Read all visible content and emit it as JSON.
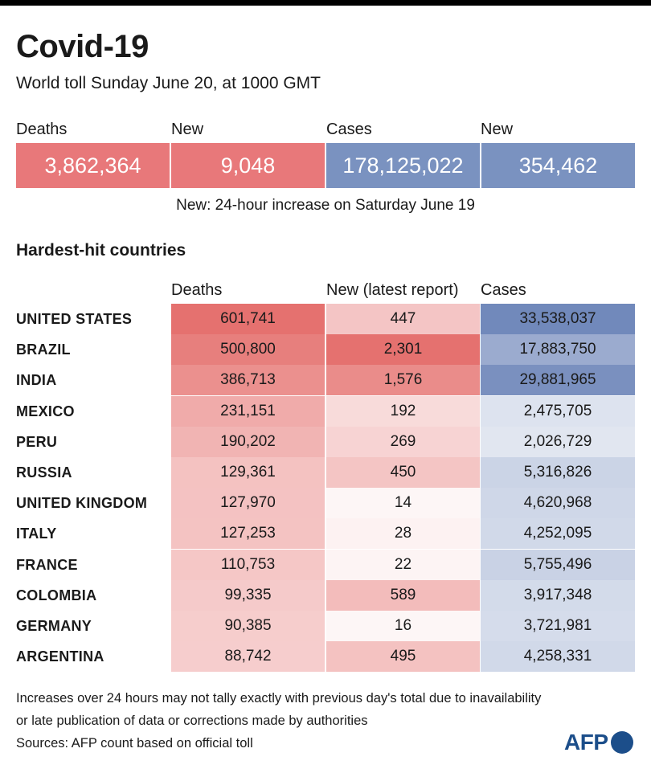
{
  "title": "Covid-19",
  "subtitle": "World toll Sunday June 20,  at 1000 GMT",
  "summary": {
    "deaths_label": "Deaths",
    "deaths_value": "3,862,364",
    "deaths_new_label": "New",
    "deaths_new_value": "9,048",
    "cases_label": "Cases",
    "cases_value": "178,125,022",
    "cases_new_label": "New",
    "cases_new_value": "354,462",
    "note": "New: 24-hour increase on Saturday June 19",
    "colors": {
      "deaths": "#e8787a",
      "cases": "#7a92c0"
    }
  },
  "section_title": "Hardest-hit countries",
  "chart_data": {
    "type": "table",
    "columns": [
      "Deaths",
      "New (latest report)",
      "Cases"
    ],
    "rows": [
      {
        "country": "UNITED STATES",
        "deaths": 601741,
        "new": 447,
        "cases": 33538037,
        "deaths_text": "601,741",
        "new_text": "447",
        "cases_text": "33,538,037"
      },
      {
        "country": "BRAZIL",
        "deaths": 500800,
        "new": 2301,
        "cases": 17883750,
        "deaths_text": "500,800",
        "new_text": "2,301",
        "cases_text": "17,883,750"
      },
      {
        "country": "INDIA",
        "deaths": 386713,
        "new": 1576,
        "cases": 29881965,
        "deaths_text": "386,713",
        "new_text": "1,576",
        "cases_text": "29,881,965"
      },
      {
        "country": "MEXICO",
        "deaths": 231151,
        "new": 192,
        "cases": 2475705,
        "deaths_text": "231,151",
        "new_text": "192",
        "cases_text": "2,475,705"
      },
      {
        "country": "PERU",
        "deaths": 190202,
        "new": 269,
        "cases": 2026729,
        "deaths_text": "190,202",
        "new_text": "269",
        "cases_text": "2,026,729"
      },
      {
        "country": "RUSSIA",
        "deaths": 129361,
        "new": 450,
        "cases": 5316826,
        "deaths_text": "129,361",
        "new_text": "450",
        "cases_text": "5,316,826"
      },
      {
        "country": "UNITED KINGDOM",
        "deaths": 127970,
        "new": 14,
        "cases": 4620968,
        "deaths_text": "127,970",
        "new_text": "14",
        "cases_text": "4,620,968"
      },
      {
        "country": "ITALY",
        "deaths": 127253,
        "new": 28,
        "cases": 4252095,
        "deaths_text": "127,253",
        "new_text": "28",
        "cases_text": "4,252,095"
      },
      {
        "country": "FRANCE",
        "deaths": 110753,
        "new": 22,
        "cases": 5755496,
        "deaths_text": "110,753",
        "new_text": "22",
        "cases_text": "5,755,496"
      },
      {
        "country": "COLOMBIA",
        "deaths": 99335,
        "new": 589,
        "cases": 3917348,
        "deaths_text": "99,335",
        "new_text": "589",
        "cases_text": "3,917,348"
      },
      {
        "country": "GERMANY",
        "deaths": 90385,
        "new": 16,
        "cases": 3721981,
        "deaths_text": "90,385",
        "new_text": "16",
        "cases_text": "3,721,981"
      },
      {
        "country": "ARGENTINA",
        "deaths": 88742,
        "new": 495,
        "cases": 4258331,
        "deaths_text": "88,742",
        "new_text": "495",
        "cases_text": "4,258,331"
      }
    ],
    "colors": {
      "deaths_high": "#e5716f",
      "new_high": "#e5716f",
      "cases_high": "#7189bb"
    }
  },
  "notes": {
    "line1": "Increases over 24 hours may not tally exactly with previous day's total due to inavailability",
    "line2": "or late publication of data or corrections made by authorities",
    "line3": "Sources: AFP count based on official toll"
  },
  "logo": {
    "text": "AFP"
  }
}
